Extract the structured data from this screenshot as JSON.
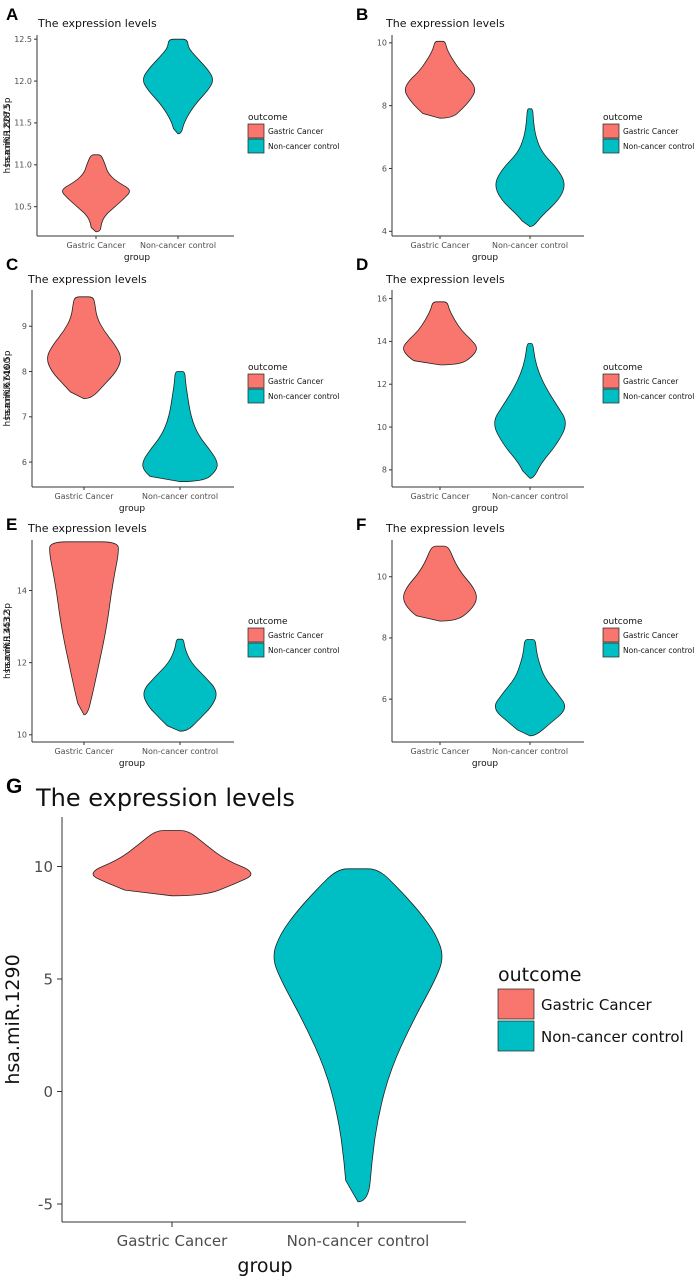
{
  "colors": {
    "gastric": "#F8766D",
    "control": "#00BFC4"
  },
  "chart_data": [
    {
      "panel": "A",
      "type": "violin",
      "title": "The  expression  levels",
      "xlabel": "group",
      "ylabel": "hsa.miR.1228.5p",
      "categories": [
        "Gastric Cancer",
        "Non-cancer control"
      ],
      "ylim": [
        10.15,
        12.55
      ],
      "yticks": [
        10.5,
        11.0,
        11.5,
        12.0,
        12.5
      ],
      "ytick_labels": [
        "10.5",
        "11.0",
        "11.5",
        "12.0",
        "12.5"
      ],
      "legend": {
        "title": "outcome",
        "entries": [
          "Gastric Cancer",
          "Non-cancer control"
        ]
      },
      "series": [
        {
          "name": "Gastric Cancer",
          "profile": [
            [
              10.2,
              0.08
            ],
            [
              10.3,
              0.1
            ],
            [
              10.4,
              0.22
            ],
            [
              10.5,
              0.5
            ],
            [
              10.6,
              0.78
            ],
            [
              10.7,
              1.0
            ],
            [
              10.8,
              0.55
            ],
            [
              10.9,
              0.3
            ],
            [
              11.0,
              0.22
            ],
            [
              11.12,
              0.1
            ]
          ]
        },
        {
          "name": "Non-cancer control",
          "profile": [
            [
              11.37,
              0.05
            ],
            [
              11.5,
              0.12
            ],
            [
              11.7,
              0.4
            ],
            [
              11.9,
              0.85
            ],
            [
              12.02,
              1.0
            ],
            [
              12.15,
              0.8
            ],
            [
              12.3,
              0.45
            ],
            [
              12.4,
              0.25
            ],
            [
              12.5,
              0.22
            ]
          ]
        }
      ]
    },
    {
      "panel": "B",
      "type": "violin",
      "title": "The  expression  levels",
      "xlabel": "group",
      "ylabel": "hsa.miR.8073",
      "categories": [
        "Gastric Cancer",
        "Non-cancer control"
      ],
      "ylim": [
        3.85,
        10.25
      ],
      "yticks": [
        4,
        6,
        8,
        10
      ],
      "ytick_labels": [
        "4",
        "6",
        "8",
        "10"
      ],
      "legend": {
        "title": "outcome",
        "entries": [
          "Gastric Cancer",
          "Non-cancer control"
        ]
      },
      "series": [
        {
          "name": "Gastric Cancer",
          "profile": [
            [
              7.6,
              0.3
            ],
            [
              7.9,
              0.6
            ],
            [
              8.2,
              0.85
            ],
            [
              8.5,
              1.0
            ],
            [
              8.8,
              0.85
            ],
            [
              9.1,
              0.55
            ],
            [
              9.5,
              0.3
            ],
            [
              9.8,
              0.15
            ],
            [
              10.05,
              0.1
            ]
          ]
        },
        {
          "name": "Non-cancer control",
          "profile": [
            [
              4.15,
              0.05
            ],
            [
              4.5,
              0.3
            ],
            [
              5.0,
              0.8
            ],
            [
              5.5,
              1.0
            ],
            [
              6.0,
              0.75
            ],
            [
              6.5,
              0.3
            ],
            [
              7.0,
              0.12
            ],
            [
              7.5,
              0.05
            ],
            [
              7.9,
              0.03
            ]
          ]
        }
      ]
    },
    {
      "panel": "C",
      "type": "violin",
      "title": "The  expression  levels",
      "xlabel": "group",
      "ylabel": "hsa.miR.6746.5p",
      "categories": [
        "Gastric Cancer",
        "Non-cancer control"
      ],
      "ylim": [
        5.45,
        9.8
      ],
      "yticks": [
        6,
        7,
        8,
        9
      ],
      "ytick_labels": [
        "6",
        "7",
        "8",
        "9"
      ],
      "legend": {
        "title": "outcome",
        "entries": [
          "Gastric Cancer",
          "Non-cancer control"
        ]
      },
      "series": [
        {
          "name": "Gastric Cancer",
          "profile": [
            [
              7.4,
              0.15
            ],
            [
              7.7,
              0.5
            ],
            [
              8.0,
              0.85
            ],
            [
              8.3,
              1.0
            ],
            [
              8.6,
              0.8
            ],
            [
              8.9,
              0.5
            ],
            [
              9.2,
              0.3
            ],
            [
              9.5,
              0.25
            ],
            [
              9.65,
              0.2
            ]
          ]
        },
        {
          "name": "Non-cancer control",
          "profile": [
            [
              5.57,
              0.6
            ],
            [
              5.8,
              0.95
            ],
            [
              6.0,
              1.0
            ],
            [
              6.3,
              0.75
            ],
            [
              6.6,
              0.45
            ],
            [
              7.0,
              0.25
            ],
            [
              7.5,
              0.15
            ],
            [
              7.8,
              0.1
            ],
            [
              8.0,
              0.08
            ]
          ]
        }
      ]
    },
    {
      "panel": "D",
      "type": "violin",
      "title": "The  expression  levels",
      "xlabel": "group",
      "ylabel": "hsa.miR.6100",
      "categories": [
        "Gastric Cancer",
        "Non-cancer control"
      ],
      "ylim": [
        7.2,
        16.4
      ],
      "yticks": [
        8,
        10,
        12,
        14,
        16
      ],
      "ytick_labels": [
        "8",
        "10",
        "12",
        "14",
        "16"
      ],
      "legend": {
        "title": "outcome",
        "entries": [
          "Gastric Cancer",
          "Non-cancer control"
        ]
      },
      "series": [
        {
          "name": "Gastric Cancer",
          "profile": [
            [
              12.9,
              0.5
            ],
            [
              13.3,
              0.85
            ],
            [
              13.7,
              1.0
            ],
            [
              14.1,
              0.8
            ],
            [
              14.5,
              0.55
            ],
            [
              15.0,
              0.35
            ],
            [
              15.5,
              0.2
            ],
            [
              15.85,
              0.15
            ]
          ]
        },
        {
          "name": "Non-cancer control",
          "profile": [
            [
              7.6,
              0.05
            ],
            [
              8.3,
              0.25
            ],
            [
              9.2,
              0.7
            ],
            [
              10.2,
              1.0
            ],
            [
              11.0,
              0.7
            ],
            [
              11.8,
              0.4
            ],
            [
              12.5,
              0.2
            ],
            [
              13.2,
              0.08
            ],
            [
              13.9,
              0.03
            ]
          ]
        }
      ]
    },
    {
      "panel": "E",
      "type": "violin",
      "title": "The  expression  levels",
      "xlabel": "group",
      "ylabel": "hsa.miR.4532",
      "categories": [
        "Gastric Cancer",
        "Non-cancer control"
      ],
      "ylim": [
        9.8,
        15.4
      ],
      "yticks": [
        10,
        12,
        14
      ],
      "ytick_labels": [
        "10",
        "12",
        "14"
      ],
      "legend": {
        "title": "outcome",
        "entries": [
          "Gastric Cancer",
          "Non-cancer control"
        ]
      },
      "series": [
        {
          "name": "Gastric Cancer",
          "profile": [
            [
              10.55,
              0.05
            ],
            [
              11.2,
              0.2
            ],
            [
              11.9,
              0.35
            ],
            [
              12.6,
              0.5
            ],
            [
              13.3,
              0.62
            ],
            [
              13.9,
              0.7
            ],
            [
              14.5,
              0.8
            ],
            [
              15.0,
              0.9
            ],
            [
              15.35,
              0.9
            ]
          ]
        },
        {
          "name": "Non-cancer control",
          "profile": [
            [
              10.1,
              0.15
            ],
            [
              10.4,
              0.45
            ],
            [
              10.8,
              0.85
            ],
            [
              11.2,
              1.0
            ],
            [
              11.6,
              0.65
            ],
            [
              12.0,
              0.25
            ],
            [
              12.4,
              0.08
            ],
            [
              12.65,
              0.05
            ]
          ]
        }
      ]
    },
    {
      "panel": "F",
      "type": "violin",
      "title": "The  expression  levels",
      "xlabel": "group",
      "ylabel": "hsa.miR.1343.3p",
      "categories": [
        "Gastric Cancer",
        "Non-cancer control"
      ],
      "ylim": [
        4.6,
        11.2
      ],
      "yticks": [
        6,
        8,
        10
      ],
      "ytick_labels": [
        "6",
        "8",
        "10"
      ],
      "legend": {
        "title": "outcome",
        "entries": [
          "Gastric Cancer",
          "Non-cancer control"
        ]
      },
      "series": [
        {
          "name": "Gastric Cancer",
          "profile": [
            [
              8.55,
              0.4
            ],
            [
              8.9,
              0.8
            ],
            [
              9.3,
              1.0
            ],
            [
              9.7,
              0.85
            ],
            [
              10.1,
              0.55
            ],
            [
              10.5,
              0.35
            ],
            [
              10.8,
              0.25
            ],
            [
              11.0,
              0.15
            ]
          ]
        },
        {
          "name": "Non-cancer control",
          "profile": [
            [
              4.8,
              0.1
            ],
            [
              5.2,
              0.5
            ],
            [
              5.7,
              1.0
            ],
            [
              6.2,
              0.7
            ],
            [
              6.7,
              0.35
            ],
            [
              7.2,
              0.2
            ],
            [
              7.6,
              0.12
            ],
            [
              7.95,
              0.1
            ]
          ]
        }
      ]
    },
    {
      "panel": "G",
      "type": "violin",
      "title": "The  expression  levels",
      "xlabel": "group",
      "ylabel": "hsa.miR.1290",
      "categories": [
        "Gastric Cancer",
        "Non-cancer control"
      ],
      "ylim": [
        -5.8,
        12.2
      ],
      "yticks": [
        -5,
        0,
        5,
        10
      ],
      "ytick_labels": [
        "-5",
        "0",
        "5",
        "10"
      ],
      "legend": {
        "title": "outcome",
        "entries": [
          "Gastric Cancer",
          "Non-cancer control"
        ]
      },
      "series": [
        {
          "name": "Gastric Cancer",
          "profile": [
            [
              8.7,
              0.35
            ],
            [
              9.2,
              0.7
            ],
            [
              9.7,
              1.0
            ],
            [
              10.3,
              0.6
            ],
            [
              11.0,
              0.35
            ],
            [
              11.6,
              0.15
            ]
          ]
        },
        {
          "name": "Non-cancer control",
          "profile": [
            [
              -4.9,
              0.08
            ],
            [
              -3.0,
              0.12
            ],
            [
              -1.0,
              0.2
            ],
            [
              1.0,
              0.35
            ],
            [
              3.0,
              0.6
            ],
            [
              5.0,
              0.9
            ],
            [
              6.0,
              1.0
            ],
            [
              7.0,
              0.9
            ],
            [
              8.0,
              0.7
            ],
            [
              9.0,
              0.45
            ],
            [
              9.9,
              0.2
            ]
          ]
        }
      ]
    }
  ]
}
